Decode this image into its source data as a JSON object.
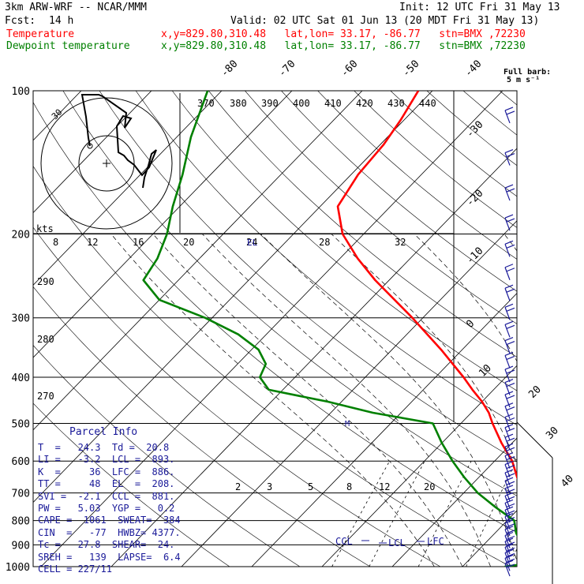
{
  "header": {
    "model_line": "3km ARW-WRF -- NCAR/MMM",
    "fcst_label": "Fcst:",
    "fcst_value": "14 h",
    "init_line": "Init: 12 UTC Fri 31 May 13",
    "valid_line": "Valid: 02 UTC Sat 01 Jun 13 (20 MDT Fri 31 May 13)",
    "temp_label": "Temperature",
    "dew_label": "Dewpoint temperature",
    "temp_loc": "x,y=829.80,310.48   lat,lon= 33.17, -86.77   stn=BMX ,72230",
    "dew_loc": "x,y=829.80,310.48   lat,lon= 33.17, -86.77   stn=BMX ,72230"
  },
  "barb_legend": {
    "title": "Full barb:",
    "value": "5 m s⁻¹"
  },
  "colors": {
    "temperature": "#ff0000",
    "dewpoint": "#008000",
    "params": "#1a1a99"
  },
  "parcel_info": {
    "title": "Parcel Info",
    "rows": [
      "T  =   24.3  Td =  20.8",
      "LI =   -3.2  LCL =  893.",
      "K  =     36  LFC =  886.",
      "TT =     48  EL  =  208.",
      "SVI =  -2.1  CCL =  881.",
      "PW =   5.03  YGP =   0.2",
      "CAPE =  1061  SWEAT=  384",
      "CIN  =   -77  HWBZ= 4377.",
      "Tc =   27.8  SHEAR=  24.",
      "SREH =   139  LAPSE=  6.4",
      "CELL = 227/11"
    ]
  },
  "chart_data": {
    "type": "line",
    "title": "",
    "y_axis": "pressure (hPa), log scale, inverted",
    "pressure_ticks": [
      100,
      200,
      300,
      400,
      500,
      600,
      700,
      800,
      900,
      1000
    ],
    "isotherm_labels": [
      "-80",
      "-70",
      "-60",
      "-50",
      "-40",
      "-30",
      "-20",
      "-10",
      "0",
      "10",
      "20",
      "30",
      "40"
    ],
    "theta_labels": [
      "370",
      "380",
      "390",
      "400",
      "410",
      "420",
      "430",
      "440"
    ],
    "dry_adiabat_labels": [
      "290",
      "280",
      "270"
    ],
    "mixing_ratio_labels": [
      "2",
      "3",
      "5",
      "8",
      "12",
      "20"
    ],
    "hodograph_speed_labels": [
      "kts",
      "8",
      "12",
      "16",
      "20",
      "24",
      "28",
      "32"
    ],
    "hodograph_ring_label": "30",
    "level_markers": [
      "EL",
      "CCL",
      "LCL",
      "LFC",
      "M"
    ],
    "series": [
      {
        "name": "Temperature",
        "color": "#ff0000",
        "points": [
          [
            1000,
            21.5
          ],
          [
            975,
            24.3
          ],
          [
            950,
            23.0
          ],
          [
            925,
            20.5
          ],
          [
            900,
            19.5
          ],
          [
            875,
            18.8
          ],
          [
            850,
            17.8
          ],
          [
            800,
            15.8
          ],
          [
            750,
            11.5
          ],
          [
            700,
            8.5
          ],
          [
            650,
            5.5
          ],
          [
            600,
            2.5
          ],
          [
            550,
            -1.5
          ],
          [
            500,
            -5.5
          ],
          [
            475,
            -7.5
          ],
          [
            450,
            -10.0
          ],
          [
            425,
            -13.0
          ],
          [
            400,
            -16.0
          ],
          [
            350,
            -23.0
          ],
          [
            300,
            -31.5
          ],
          [
            250,
            -42.0
          ],
          [
            225,
            -47.5
          ],
          [
            200,
            -53.0
          ],
          [
            175,
            -57.5
          ],
          [
            150,
            -59.0
          ],
          [
            130,
            -59.5
          ],
          [
            115,
            -60.5
          ],
          [
            100,
            -62.0
          ]
        ]
      },
      {
        "name": "Dewpoint temperature",
        "color": "#008000",
        "points": [
          [
            1000,
            16.0
          ],
          [
            975,
            20.8
          ],
          [
            950,
            18.5
          ],
          [
            925,
            17.0
          ],
          [
            900,
            15.5
          ],
          [
            850,
            13.0
          ],
          [
            800,
            11.0
          ],
          [
            750,
            6.5
          ],
          [
            700,
            2.0
          ],
          [
            650,
            -2.0
          ],
          [
            600,
            -6.0
          ],
          [
            550,
            -10.0
          ],
          [
            500,
            -14.0
          ],
          [
            475,
            -24.0
          ],
          [
            450,
            -32.0
          ],
          [
            425,
            -42.0
          ],
          [
            400,
            -45.0
          ],
          [
            375,
            -46.0
          ],
          [
            350,
            -49.0
          ],
          [
            325,
            -54.0
          ],
          [
            300,
            -61.0
          ],
          [
            275,
            -70.0
          ],
          [
            250,
            -75.0
          ],
          [
            225,
            -76.0
          ],
          [
            200,
            -78.0
          ],
          [
            175,
            -81.0
          ],
          [
            150,
            -84.0
          ],
          [
            125,
            -88.0
          ],
          [
            100,
            -92.0
          ]
        ]
      }
    ],
    "wind_barbs_kts_levels": "right side column from 100 to 1000 hPa"
  }
}
